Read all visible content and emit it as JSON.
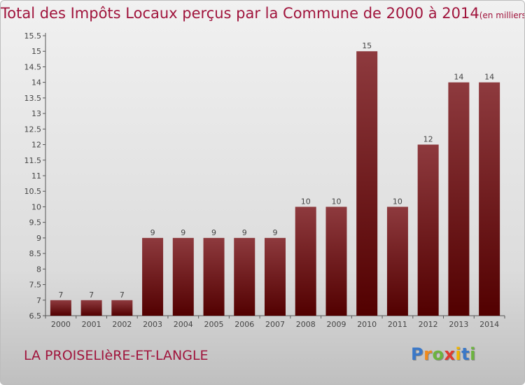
{
  "header": {
    "title": "Total des Impôts Locaux perçus par la Commune de 2000 à 2014",
    "title_suffix": "(en milliers d'€)"
  },
  "footer": {
    "commune": "LA PROISELIèRE-ET-LANGLE",
    "logo_letters": [
      "P",
      "r",
      "o",
      "x",
      "i",
      "t",
      "i"
    ],
    "logo_colors": [
      "#3a78c8",
      "#f08a1c",
      "#6cb43f",
      "#e03a2f",
      "#f0b400",
      "#3a78c8",
      "#6cb43f"
    ]
  },
  "colors": {
    "title": "#a0143c",
    "bar_top": "#8e3a3e",
    "bar_bottom": "#520000"
  },
  "chart_data": {
    "type": "bar",
    "title": "Total des Impôts Locaux perçus par la Commune de 2000 à 2014",
    "unit": "(en milliers d'€)",
    "xlabel": "",
    "ylabel": "",
    "categories": [
      "2000",
      "2001",
      "2002",
      "2003",
      "2004",
      "2005",
      "2006",
      "2007",
      "2008",
      "2009",
      "2010",
      "2011",
      "2012",
      "2013",
      "2014"
    ],
    "values": [
      7,
      7,
      7,
      9,
      9,
      9,
      9,
      9,
      10,
      10,
      15,
      10,
      12,
      14,
      14
    ],
    "ylim": [
      6.5,
      15.5
    ],
    "yticks": [
      6.5,
      7,
      7.5,
      8,
      8.5,
      9,
      9.5,
      10,
      10.5,
      11,
      11.5,
      12,
      12.5,
      13,
      13.5,
      14,
      14.5,
      15,
      15.5
    ],
    "ytick_labels": [
      "6.5",
      "7",
      "7.5",
      "8",
      "8.5",
      "9",
      "9.5",
      "10",
      "10.5",
      "11",
      "11.5",
      "12",
      "12.5",
      "13",
      "13.5",
      "14",
      "14.5",
      "15",
      "15.5"
    ],
    "grid": false,
    "legend": "none"
  }
}
